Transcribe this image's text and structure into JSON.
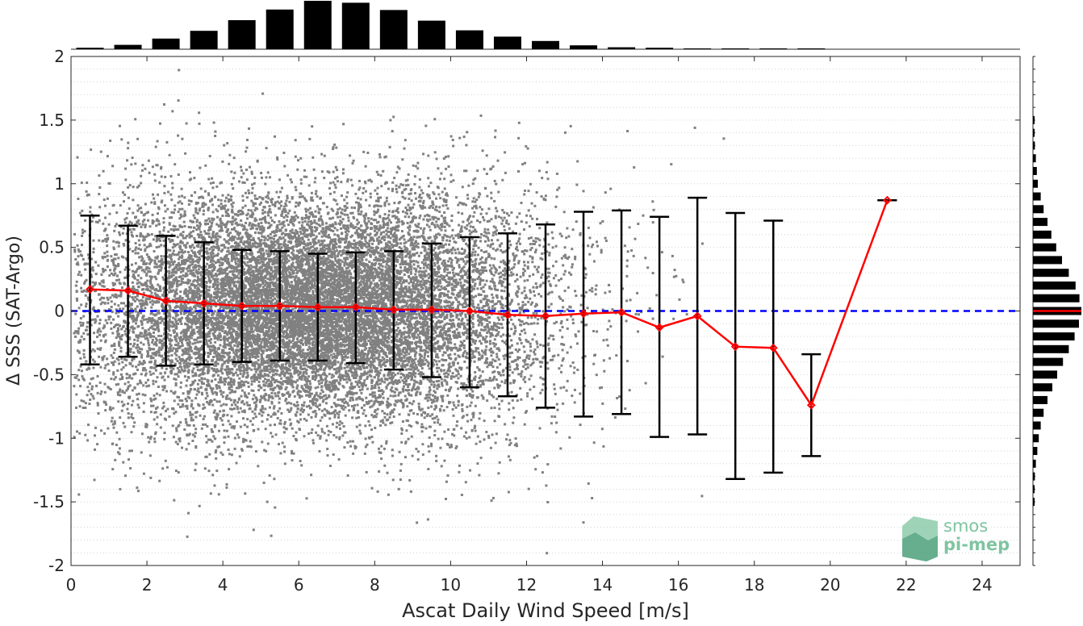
{
  "chart_data": {
    "type": "scatter",
    "title": "",
    "xlabel": "Ascat Daily Wind Speed [m/s]",
    "ylabel": "Δ SSS (SAT-Argo)",
    "xlim": [
      0,
      25
    ],
    "ylim": [
      -2,
      2
    ],
    "x_ticks": [
      "0",
      "2",
      "4",
      "6",
      "8",
      "10",
      "12",
      "14",
      "16",
      "18",
      "20",
      "22",
      "24"
    ],
    "y_ticks": [
      "2",
      "1.5",
      "1",
      "0.5",
      "0",
      "-0.5",
      "-1",
      "-1.5",
      "-2"
    ],
    "grid": true,
    "colors": {
      "scatter": "#808080",
      "median_line": "#ff0000",
      "error_bars": "#000000",
      "zero_line": "#0000ff",
      "marginal_bars": "#000000",
      "logo": "#7fc4a0"
    },
    "bin_x": [
      0.5,
      1.5,
      2.5,
      3.5,
      4.5,
      5.5,
      6.5,
      7.5,
      8.5,
      9.5,
      10.5,
      11.5,
      12.5,
      13.5,
      14.5,
      15.5,
      16.5,
      17.5,
      18.5,
      19.5,
      21.5
    ],
    "series": [
      {
        "values": [
          0.17,
          0.16,
          0.08,
          0.06,
          0.04,
          0.04,
          0.03,
          0.03,
          0.01,
          0.01,
          0.0,
          -0.03,
          -0.04,
          -0.02,
          -0.01,
          -0.13,
          -0.04,
          -0.28,
          -0.29,
          -0.74,
          0.87
        ]
      }
    ],
    "error_bars": {
      "upper": [
        0.75,
        0.67,
        0.59,
        0.54,
        0.48,
        0.47,
        0.45,
        0.46,
        0.47,
        0.53,
        0.58,
        0.61,
        0.68,
        0.78,
        0.79,
        0.74,
        0.89,
        0.77,
        0.71,
        -0.34,
        0.87
      ],
      "lower": [
        -0.42,
        -0.36,
        -0.43,
        -0.42,
        -0.4,
        -0.39,
        -0.39,
        -0.41,
        -0.46,
        -0.52,
        -0.6,
        -0.67,
        -0.76,
        -0.83,
        -0.81,
        -0.99,
        -0.97,
        -1.32,
        -1.27,
        -1.14,
        0.87
      ]
    },
    "zero_line": 0,
    "top_histogram": {
      "x": [
        0.5,
        1.5,
        2.5,
        3.5,
        4.5,
        5.5,
        6.5,
        7.5,
        8.5,
        9.5,
        10.5,
        11.5,
        12.5,
        13.5,
        14.5,
        15.5,
        16.5,
        17.5,
        18.5,
        19.5
      ],
      "values": [
        0.03,
        0.09,
        0.22,
        0.38,
        0.6,
        0.82,
        1.0,
        0.96,
        0.81,
        0.59,
        0.39,
        0.26,
        0.17,
        0.08,
        0.04,
        0.03,
        0.015,
        0.01,
        0.005,
        0.003
      ]
    },
    "right_histogram": {
      "y": [
        1.5,
        1.4,
        1.3,
        1.2,
        1.1,
        1.0,
        0.9,
        0.8,
        0.7,
        0.6,
        0.5,
        0.4,
        0.3,
        0.2,
        0.1,
        0.0,
        -0.1,
        -0.2,
        -0.3,
        -0.4,
        -0.5,
        -0.6,
        -0.7,
        -0.8,
        -0.9,
        -1.0,
        -1.1,
        -1.2,
        -1.3,
        -1.4,
        -1.5
      ],
      "values": [
        0.01,
        0.02,
        0.04,
        0.06,
        0.08,
        0.1,
        0.16,
        0.22,
        0.3,
        0.38,
        0.48,
        0.6,
        0.74,
        0.88,
        0.96,
        1.0,
        0.95,
        0.86,
        0.74,
        0.62,
        0.5,
        0.4,
        0.3,
        0.22,
        0.16,
        0.12,
        0.09,
        0.06,
        0.04,
        0.02,
        0.01
      ]
    },
    "logo": {
      "line1": "smos",
      "line2": "pi-mep"
    }
  }
}
